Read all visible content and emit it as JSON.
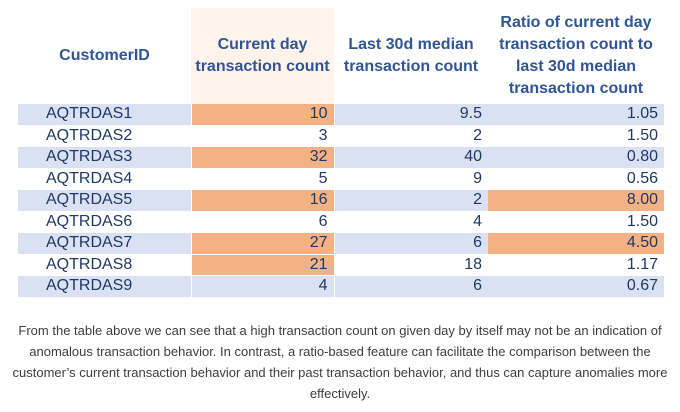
{
  "table": {
    "headers": [
      "CustomerID",
      "Current day transaction count",
      "Last 30d median transaction count",
      "Ratio of current day transaction count to last 30d median transaction count"
    ],
    "rows": [
      {
        "id": "AQTRDAS1",
        "current": "10",
        "median": "9.5",
        "ratio": "1.05"
      },
      {
        "id": "AQTRDAS2",
        "current": "3",
        "median": "2",
        "ratio": "1.50"
      },
      {
        "id": "AQTRDAS3",
        "current": "32",
        "median": "40",
        "ratio": "0.80"
      },
      {
        "id": "AQTRDAS4",
        "current": "5",
        "median": "9",
        "ratio": "0.56"
      },
      {
        "id": "AQTRDAS5",
        "current": "16",
        "median": "2",
        "ratio": "8.00"
      },
      {
        "id": "AQTRDAS6",
        "current": "6",
        "median": "4",
        "ratio": "1.50"
      },
      {
        "id": "AQTRDAS7",
        "current": "27",
        "median": "6",
        "ratio": "4.50"
      },
      {
        "id": "AQTRDAS8",
        "current": "21",
        "median": "18",
        "ratio": "1.17"
      },
      {
        "id": "AQTRDAS9",
        "current": "4",
        "median": "6",
        "ratio": "0.67"
      }
    ],
    "colors": {
      "header_text": "#2f5597",
      "band_blue": "#d9e1f2",
      "highlight_orange": "#f4b183",
      "cell_text": "#1f3864"
    }
  },
  "caption": "From the table above we can see that a high transaction count on given day by itself may not be an indication of anomalous transaction behavior. In contrast, a ratio-based feature can facilitate the comparison between the customer’s current transaction behavior and their past transaction behavior, and thus can capture anomalies more effectively."
}
